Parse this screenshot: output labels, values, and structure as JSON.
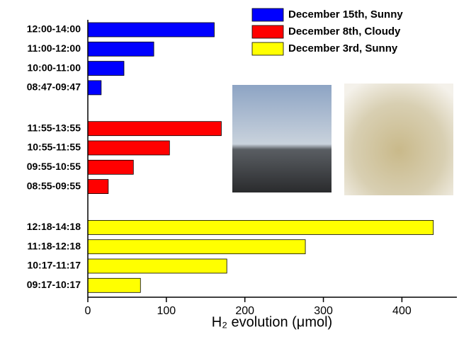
{
  "chart_data": {
    "type": "bar",
    "orientation": "horizontal",
    "xlabel": "H₂ evolution (μmol)",
    "xlim": [
      0,
      470
    ],
    "xticks": [
      0,
      100,
      200,
      300,
      400
    ],
    "legend": "upper right",
    "series": [
      {
        "name": "December 15th, Sunny",
        "color": "#0000ff",
        "categories": [
          "12:00-14:00",
          "11:00-12:00",
          "10:00-11:00",
          "08:47-09:47"
        ],
        "values": [
          161,
          84,
          46,
          17
        ]
      },
      {
        "name": "December 8th, Cloudy",
        "color": "#ff0000",
        "categories": [
          "11:55-13:55",
          "10:55-11:55",
          "09:55-10:55",
          "08:55-09:55"
        ],
        "values": [
          170,
          104,
          58,
          26
        ]
      },
      {
        "name": "December 3rd, Sunny",
        "color": "#ffff00",
        "categories": [
          "12:18-14:18",
          "11:18-12:18",
          "10:17-11:17",
          "09:17-10:17"
        ],
        "values": [
          440,
          277,
          177,
          67
        ]
      }
    ]
  }
}
